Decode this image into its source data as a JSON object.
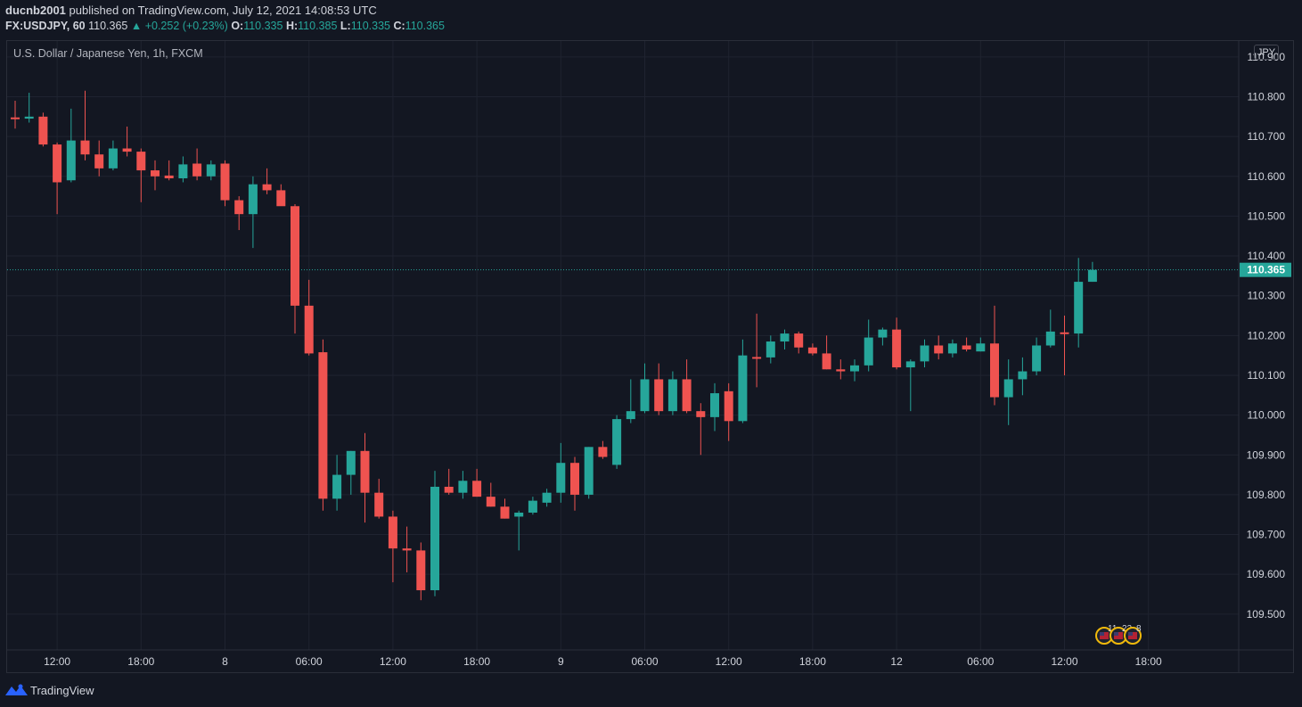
{
  "header": {
    "publisher": "ducnb2001",
    "published_text": "published on TradingView.com, July 12, 2021 14:08:53 UTC",
    "symbol": "FX:USDJPY, 60",
    "last_price": "110.365",
    "change": "▲ +0.252 (+0.23%)",
    "o_label": "O:",
    "o_value": "110.335",
    "h_label": "H:",
    "h_value": "110.385",
    "l_label": "L:",
    "l_value": "110.335",
    "c_label": "C:",
    "c_value": "110.365"
  },
  "series_title": "U.S. Dollar / Japanese Yen, 1h, FXCM",
  "currency": "JPY",
  "footer": {
    "brand": "TradingView"
  },
  "events_badge": {
    "count1": "11",
    "count2": "22",
    "count3": "8"
  },
  "colors": {
    "background": "#131722",
    "up": "#26a69a",
    "down": "#ef5350",
    "grid": "#1f2330",
    "axis_text": "#d1d4dc",
    "price_line": "#26a69a"
  },
  "chart_data": {
    "type": "candlestick",
    "title": "U.S. Dollar / Japanese Yen, 1h, FXCM",
    "symbol": "FX:USDJPY",
    "interval": "60",
    "ylim": [
      109.41,
      110.94
    ],
    "y_ticks": [
      "110.900",
      "110.800",
      "110.700",
      "110.600",
      "110.500",
      "110.400",
      "110.300",
      "110.200",
      "110.100",
      "110.000",
      "109.900",
      "109.800",
      "109.700",
      "109.600",
      "109.500"
    ],
    "x_tick_labels": [
      {
        "bar": 3,
        "label": "12:00"
      },
      {
        "bar": 9,
        "label": "18:00"
      },
      {
        "bar": 15,
        "label": "8"
      },
      {
        "bar": 21,
        "label": "06:00"
      },
      {
        "bar": 27,
        "label": "12:00"
      },
      {
        "bar": 33,
        "label": "18:00"
      },
      {
        "bar": 39,
        "label": "9"
      },
      {
        "bar": 45,
        "label": "06:00"
      },
      {
        "bar": 51,
        "label": "12:00"
      },
      {
        "bar": 57,
        "label": "18:00"
      },
      {
        "bar": 63,
        "label": "12"
      },
      {
        "bar": 69,
        "label": "06:00"
      },
      {
        "bar": 75,
        "label": "12:00"
      },
      {
        "bar": 81,
        "label": "18:00"
      }
    ],
    "total_slots": 88,
    "current_price": 110.365,
    "current_price_label": "110.365",
    "candles": [
      [
        110.748,
        110.79,
        110.72,
        110.745
      ],
      [
        110.745,
        110.81,
        110.735,
        110.75
      ],
      [
        110.75,
        110.76,
        110.675,
        110.68
      ],
      [
        110.68,
        110.685,
        110.505,
        110.585
      ],
      [
        110.59,
        110.77,
        110.585,
        110.69
      ],
      [
        110.69,
        110.815,
        110.64,
        110.655
      ],
      [
        110.655,
        110.69,
        110.6,
        110.62
      ],
      [
        110.62,
        110.69,
        110.615,
        110.67
      ],
      [
        110.67,
        110.725,
        110.65,
        110.662
      ],
      [
        110.662,
        110.67,
        110.535,
        110.615
      ],
      [
        110.615,
        110.64,
        110.565,
        110.6
      ],
      [
        110.602,
        110.64,
        110.59,
        110.595
      ],
      [
        110.595,
        110.65,
        110.585,
        110.63
      ],
      [
        110.632,
        110.67,
        110.59,
        110.6
      ],
      [
        110.6,
        110.64,
        110.59,
        110.63
      ],
      [
        110.632,
        110.64,
        110.525,
        110.54
      ],
      [
        110.54,
        110.55,
        110.465,
        110.505
      ],
      [
        110.505,
        110.6,
        110.42,
        110.58
      ],
      [
        110.58,
        110.62,
        110.555,
        110.565
      ],
      [
        110.565,
        110.58,
        110.53,
        110.525
      ],
      [
        110.525,
        110.53,
        110.205,
        110.275
      ],
      [
        110.275,
        110.34,
        110.15,
        110.155
      ],
      [
        110.158,
        110.19,
        109.76,
        109.79
      ],
      [
        109.79,
        109.9,
        109.76,
        109.85
      ],
      [
        109.85,
        109.91,
        109.8,
        109.91
      ],
      [
        109.91,
        109.955,
        109.73,
        109.805
      ],
      [
        109.805,
        109.84,
        109.74,
        109.745
      ],
      [
        109.745,
        109.76,
        109.58,
        109.665
      ],
      [
        109.665,
        109.72,
        109.605,
        109.66
      ],
      [
        109.66,
        109.68,
        109.535,
        109.56
      ],
      [
        109.56,
        109.86,
        109.545,
        109.82
      ],
      [
        109.82,
        109.865,
        109.8,
        109.805
      ],
      [
        109.805,
        109.86,
        109.79,
        109.835
      ],
      [
        109.835,
        109.865,
        109.795,
        109.795
      ],
      [
        109.795,
        109.83,
        109.77,
        109.77
      ],
      [
        109.77,
        109.79,
        109.74,
        109.74
      ],
      [
        109.745,
        109.76,
        109.66,
        109.755
      ],
      [
        109.755,
        109.795,
        109.75,
        109.785
      ],
      [
        109.78,
        109.815,
        109.77,
        109.805
      ],
      [
        109.805,
        109.93,
        109.78,
        109.88
      ],
      [
        109.88,
        109.895,
        109.76,
        109.8
      ],
      [
        109.8,
        109.92,
        109.79,
        109.92
      ],
      [
        109.92,
        109.935,
        109.89,
        109.895
      ],
      [
        109.875,
        110.0,
        109.865,
        109.99
      ],
      [
        109.99,
        110.09,
        109.98,
        110.01
      ],
      [
        110.01,
        110.13,
        110.005,
        110.09
      ],
      [
        110.09,
        110.13,
        110.0,
        110.01
      ],
      [
        110.01,
        110.11,
        110.0,
        110.09
      ],
      [
        110.09,
        110.14,
        110.005,
        110.01
      ],
      [
        110.01,
        110.03,
        109.9,
        109.995
      ],
      [
        109.995,
        110.08,
        109.96,
        110.055
      ],
      [
        110.06,
        110.08,
        109.935,
        109.985
      ],
      [
        109.985,
        110.19,
        109.98,
        110.15
      ],
      [
        110.146,
        110.255,
        110.07,
        110.145
      ],
      [
        110.145,
        110.2,
        110.13,
        110.185
      ],
      [
        110.185,
        110.215,
        110.165,
        110.205
      ],
      [
        110.205,
        110.21,
        110.155,
        110.17
      ],
      [
        110.17,
        110.18,
        110.15,
        110.155
      ],
      [
        110.155,
        110.2,
        110.115,
        110.115
      ],
      [
        110.115,
        110.14,
        110.09,
        110.11
      ],
      [
        110.11,
        110.14,
        110.085,
        110.125
      ],
      [
        110.125,
        110.24,
        110.11,
        110.195
      ],
      [
        110.195,
        110.22,
        110.175,
        110.215
      ],
      [
        110.215,
        110.245,
        110.115,
        110.12
      ],
      [
        110.12,
        110.14,
        110.01,
        110.135
      ],
      [
        110.135,
        110.19,
        110.12,
        110.175
      ],
      [
        110.175,
        110.2,
        110.14,
        110.155
      ],
      [
        110.155,
        110.19,
        110.145,
        110.18
      ],
      [
        110.175,
        110.195,
        110.16,
        110.165
      ],
      [
        110.16,
        110.195,
        110.16,
        110.18
      ],
      [
        110.18,
        110.275,
        110.025,
        110.045
      ],
      [
        110.045,
        110.14,
        109.975,
        110.09
      ],
      [
        110.09,
        110.145,
        110.05,
        110.11
      ],
      [
        110.11,
        110.195,
        110.1,
        110.175
      ],
      [
        110.175,
        110.265,
        110.17,
        110.21
      ],
      [
        110.208,
        110.25,
        110.1,
        110.205
      ],
      [
        110.205,
        110.395,
        110.17,
        110.335
      ],
      [
        110.335,
        110.385,
        110.335,
        110.365
      ]
    ]
  }
}
